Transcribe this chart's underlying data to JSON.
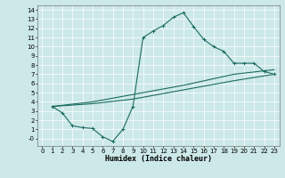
{
  "xlabel": "Humidex (Indice chaleur)",
  "ylabel": "",
  "xlim": [
    -0.5,
    23.5
  ],
  "ylim": [
    -0.8,
    14.5
  ],
  "xticks": [
    0,
    1,
    2,
    3,
    4,
    5,
    6,
    7,
    8,
    9,
    10,
    11,
    12,
    13,
    14,
    15,
    16,
    17,
    18,
    19,
    20,
    21,
    22,
    23
  ],
  "yticks": [
    0,
    1,
    2,
    3,
    4,
    5,
    6,
    7,
    8,
    9,
    10,
    11,
    12,
    13,
    14
  ],
  "bg_color": "#cce8e8",
  "line_color": "#1a6b5e",
  "grid_color": "#ffffff",
  "line1_x": [
    1,
    2,
    3,
    4,
    5,
    6,
    7,
    8,
    9,
    10,
    11,
    12,
    13,
    14,
    15,
    16,
    17,
    18,
    19,
    20,
    21,
    22,
    23
  ],
  "line1_y": [
    3.5,
    2.8,
    1.4,
    1.2,
    1.1,
    0.2,
    -0.3,
    1.0,
    3.5,
    11.0,
    11.7,
    12.3,
    13.2,
    13.7,
    12.2,
    10.8,
    10.0,
    9.5,
    8.2,
    8.2,
    8.2,
    7.3,
    7.0
  ],
  "line2_x": [
    1,
    5,
    9,
    14,
    19,
    23
  ],
  "line2_y": [
    3.5,
    4.0,
    4.8,
    5.8,
    7.0,
    7.5
  ],
  "line3_x": [
    1,
    5,
    9,
    14,
    19,
    23
  ],
  "line3_y": [
    3.5,
    3.8,
    4.3,
    5.3,
    6.3,
    7.0
  ],
  "tick_fontsize": 5,
  "xlabel_fontsize": 6,
  "grid_linewidth": 0.5,
  "line_linewidth": 0.8,
  "marker_size": 2.5,
  "marker_linewidth": 0.7
}
